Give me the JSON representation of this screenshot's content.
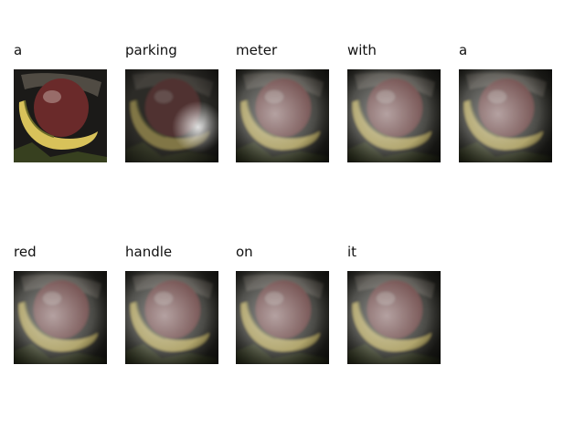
{
  "caption_words": [
    {
      "word": "a",
      "attention": "none"
    },
    {
      "word": "parking",
      "attention": "lower-right"
    },
    {
      "word": "meter",
      "attention": "diffuse"
    },
    {
      "word": "with",
      "attention": "diffuse"
    },
    {
      "word": "a",
      "attention": "diffuse"
    },
    {
      "word": "red",
      "attention": "diffuse"
    },
    {
      "word": "handle",
      "attention": "diffuse"
    },
    {
      "word": "on",
      "attention": "diffuse"
    },
    {
      "word": "it",
      "attention": "diffuse"
    }
  ],
  "colors": {
    "background": "#ffffff",
    "text": "#111111",
    "banana": "#d8c25a",
    "apple": "#6a2a2a",
    "bag_dark": "#1b1a18"
  }
}
